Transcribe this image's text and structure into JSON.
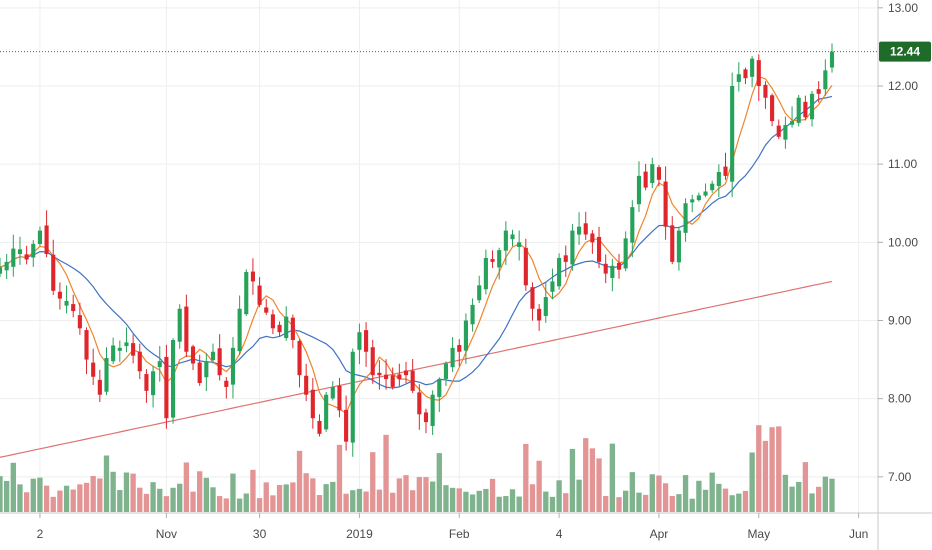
{
  "colors": {
    "up": "#26a25a",
    "down": "#e0262d",
    "ma20": "#f0842c",
    "ma50": "#3e73c4",
    "ma200": "#e07070",
    "vol_up": "#7fb38d",
    "vol_down": "#e39595",
    "grid": "#eeeeee",
    "last_price_line": "#2e7d32",
    "price_badge": "#1e6b2a"
  },
  "chart_data": {
    "type": "candlestick",
    "last_price": "12.44",
    "y_ticks": [
      "13.00",
      "12.00",
      "11.00",
      "10.00",
      "9.00",
      "8.00",
      "7.00"
    ],
    "y_tick_values": [
      13,
      12,
      11,
      10,
      9,
      8,
      7
    ],
    "ylim": [
      6.55,
      13.1
    ],
    "x_ticks": [
      "2",
      "Nov",
      "30",
      "2019",
      "Feb",
      "4",
      "Apr",
      "May",
      "Jun"
    ],
    "x_tick_index": [
      6,
      25,
      39,
      54,
      69,
      84,
      99,
      114,
      129
    ],
    "closes": [
      9.68,
      9.75,
      9.92,
      9.91,
      9.78,
      9.98,
      10.15,
      9.85,
      9.38,
      9.28,
      9.25,
      9.12,
      8.9,
      8.5,
      8.28,
      8.05,
      8.52,
      8.68,
      8.65,
      8.72,
      8.55,
      8.35,
      8.1,
      8.35,
      8.48,
      7.75,
      8.75,
      9.15,
      8.6,
      8.45,
      8.2,
      8.48,
      8.6,
      8.3,
      8.15,
      8.65,
      9.15,
      9.62,
      9.5,
      9.2,
      9.1,
      8.9,
      8.85,
      9.05,
      8.75,
      8.3,
      8.05,
      7.75,
      7.55,
      8.05,
      8.15,
      7.85,
      7.45,
      8.6,
      8.85,
      8.6,
      8.3,
      8.3,
      8.25,
      8.15,
      8.25,
      8.3,
      8.1,
      7.8,
      7.7,
      8.05,
      8.25,
      8.45,
      8.65,
      8.6,
      9.0,
      9.2,
      9.45,
      9.8,
      9.75,
      9.9,
      10.15,
      10.1,
      10.0,
      9.45,
      9.15,
      9.0,
      9.3,
      9.5,
      9.8,
      9.75,
      10.15,
      10.2,
      10.1,
      10.0,
      9.75,
      9.6,
      9.7,
      9.65,
      10.05,
      10.45,
      10.85,
      10.7,
      11.0,
      10.8,
      10.2,
      9.75,
      10.15,
      10.5,
      10.55,
      10.6,
      10.65,
      10.75,
      10.9,
      10.85,
      12.0,
      12.15,
      12.1,
      12.35,
      12.0,
      11.85,
      11.55,
      11.35,
      11.5,
      11.55,
      11.85,
      11.6,
      11.9,
      11.9,
      12.2,
      12.44
    ]
  }
}
